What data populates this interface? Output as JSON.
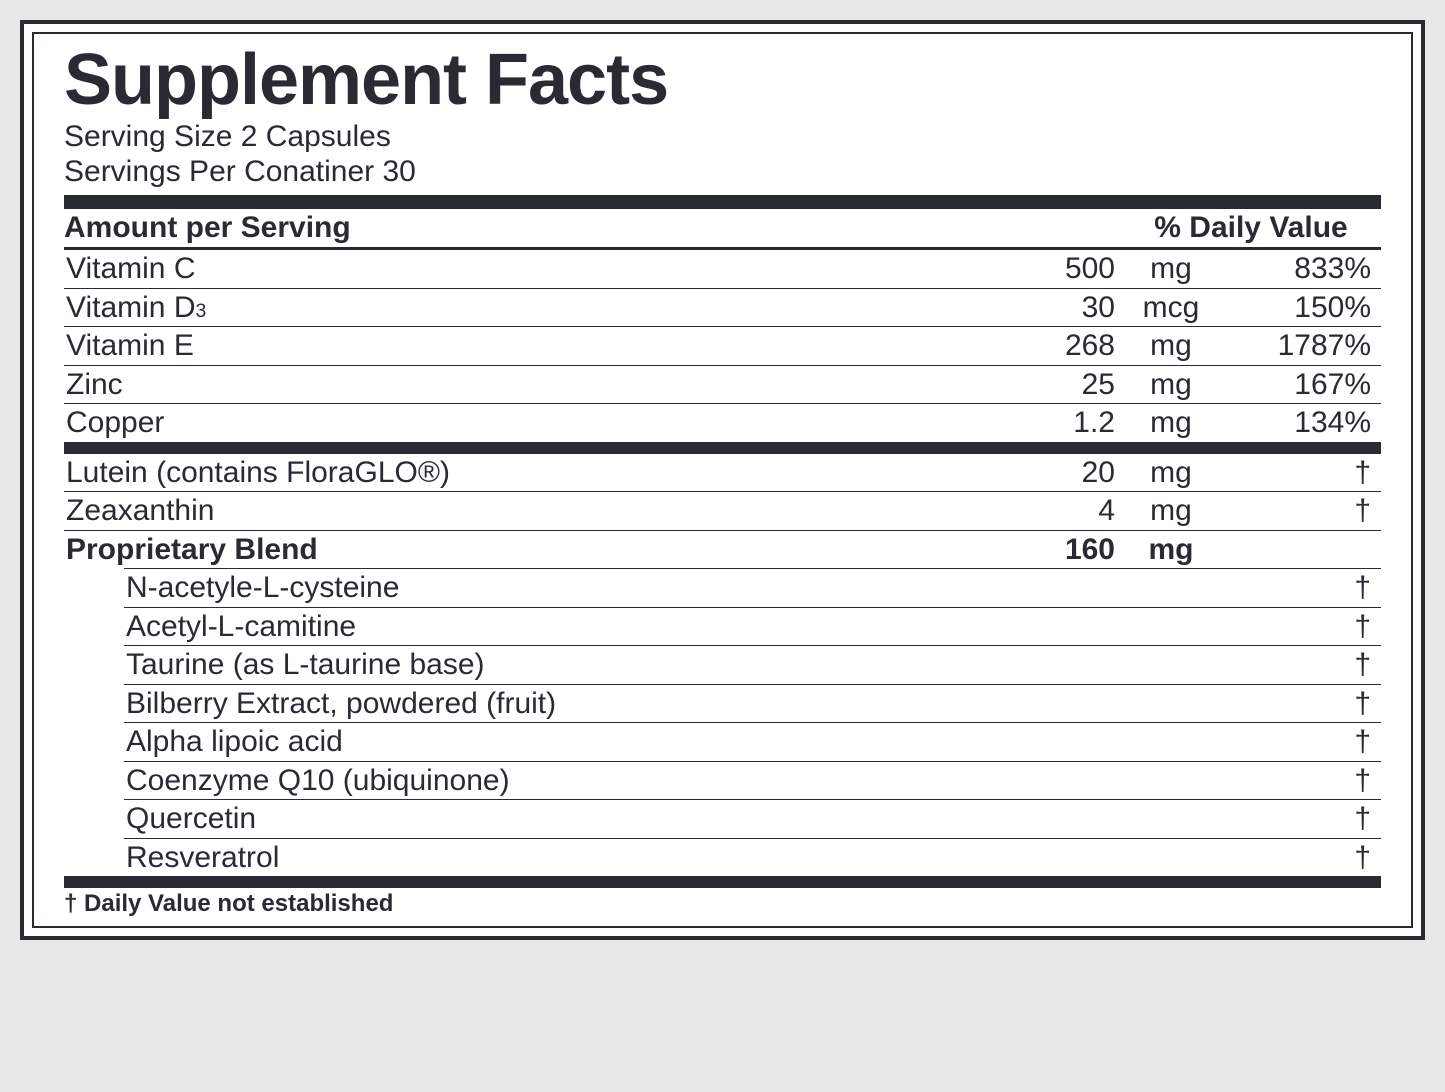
{
  "title": "Supplement Facts",
  "serving_size_label": "Serving Size 2 Capsules",
  "servings_per_label": "Servings Per Conatiner 30",
  "header_amount": "Amount per Serving",
  "header_dv": "% Daily Value",
  "footnote": "† Daily Value not established",
  "colors": {
    "border": "#2a2a33",
    "text": "#2a2a33",
    "background": "#ffffff",
    "page_bg": "#e8e8e8"
  },
  "rows_top": [
    {
      "name": "Vitamin C",
      "amount": "500",
      "unit": "mg",
      "dv": "833%"
    },
    {
      "name": "Vitamin D",
      "sub": "3",
      "amount": "30",
      "unit": "mcg",
      "dv": "150%"
    },
    {
      "name": "Vitamin E",
      "amount": "268",
      "unit": "mg",
      "dv": "1787%"
    },
    {
      "name": "Zinc",
      "amount": "25",
      "unit": "mg",
      "dv": "167%"
    },
    {
      "name": "Copper",
      "amount": "1.2",
      "unit": "mg",
      "dv": "134%"
    }
  ],
  "rows_mid": [
    {
      "name": "Lutein (contains FloraGLO®)",
      "amount": "20",
      "unit": "mg",
      "dv": "†"
    },
    {
      "name": "Zeaxanthin",
      "amount": "4",
      "unit": "mg",
      "dv": "†"
    }
  ],
  "blend": {
    "name": "Proprietary Blend",
    "amount": "160",
    "unit": "mg",
    "dv": ""
  },
  "blend_items": [
    {
      "name": "N-acetyle-L-cysteine",
      "dv": "†"
    },
    {
      "name": "Acetyl-L-camitine",
      "dv": "†"
    },
    {
      "name": "Taurine (as L-taurine base)",
      "dv": "†"
    },
    {
      "name": "Bilberry Extract, powdered (fruit)",
      "dv": "†"
    },
    {
      "name": "Alpha lipoic acid",
      "dv": "†"
    },
    {
      "name": "Coenzyme Q10 (ubiquinone)",
      "dv": "†"
    },
    {
      "name": "Quercetin",
      "dv": "†"
    },
    {
      "name": "Resveratrol",
      "dv": "†"
    }
  ]
}
